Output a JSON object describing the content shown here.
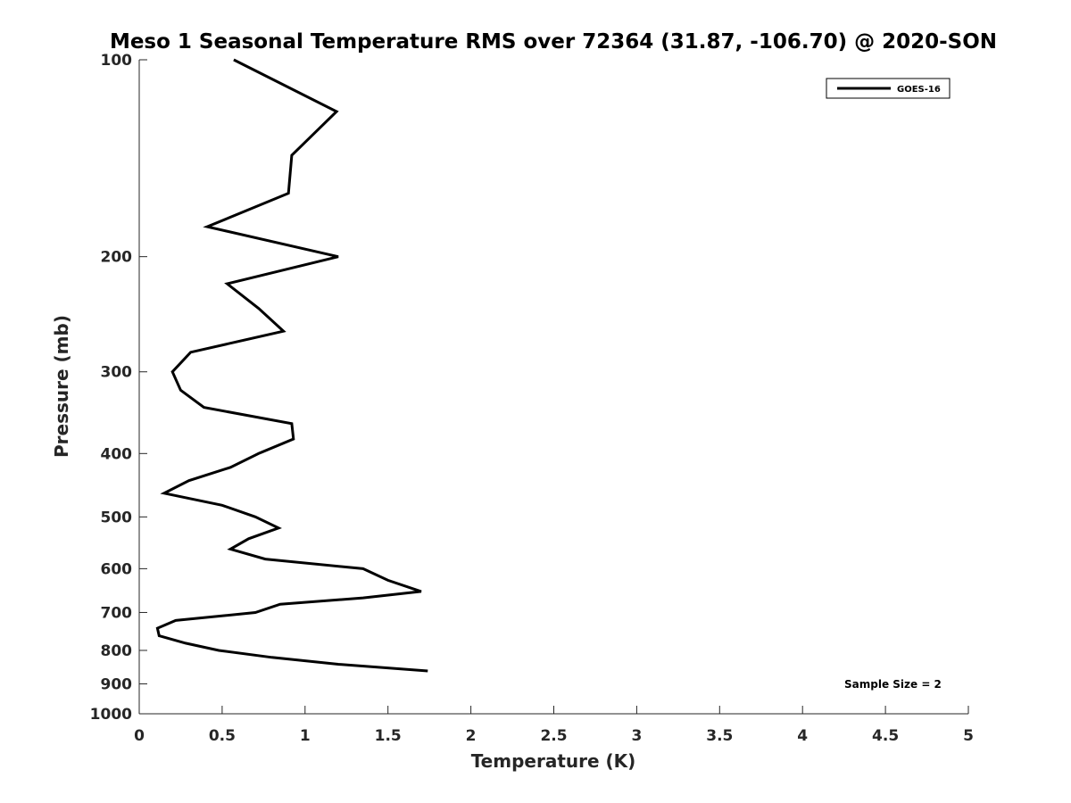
{
  "chart_data": {
    "type": "line",
    "title": "Meso 1 Seasonal Temperature RMS over 72364 (31.87, -106.70) @ 2020-SON",
    "xlabel": "Temperature (K)",
    "ylabel": "Pressure (mb)",
    "xlim": [
      0,
      5
    ],
    "ylim": [
      1000,
      100
    ],
    "y_scale": "log",
    "y_reversed": true,
    "grid": false,
    "legend_position": "top-right",
    "x_ticks": [
      0,
      0.5,
      1,
      1.5,
      2,
      2.5,
      3,
      3.5,
      4,
      4.5,
      5
    ],
    "x_tick_labels": [
      "0",
      "0.5",
      "1",
      "1.5",
      "2",
      "2.5",
      "3",
      "3.5",
      "4",
      "4.5",
      "5"
    ],
    "y_ticks": [
      100,
      200,
      300,
      400,
      500,
      600,
      700,
      800,
      900,
      1000
    ],
    "y_tick_labels": [
      "100",
      "200",
      "300",
      "400",
      "500",
      "600",
      "700",
      "800",
      "900",
      "1000"
    ],
    "series": [
      {
        "name": "GOES-16",
        "color": "#000000",
        "x": [
          0.57,
          1.19,
          0.92,
          0.9,
          0.41,
          1.2,
          0.53,
          0.72,
          0.87,
          0.31,
          0.2,
          0.25,
          0.39,
          0.92,
          0.93,
          0.72,
          0.55,
          0.3,
          0.15,
          0.5,
          0.7,
          0.84,
          0.66,
          0.55,
          0.76,
          1.35,
          1.5,
          1.7,
          1.35,
          0.85,
          0.7,
          0.22,
          0.11,
          0.12,
          0.28,
          0.48,
          0.8,
          1.2,
          1.74
        ],
        "y": [
          100,
          120,
          140,
          160,
          180,
          200,
          220,
          240,
          260,
          280,
          300,
          320,
          340,
          360,
          380,
          400,
          420,
          440,
          460,
          480,
          500,
          520,
          540,
          560,
          580,
          600,
          625,
          650,
          665,
          680,
          700,
          720,
          740,
          760,
          780,
          800,
          820,
          840,
          860
        ]
      }
    ],
    "annotations": [
      {
        "text": "Sample Size = 2"
      }
    ]
  }
}
